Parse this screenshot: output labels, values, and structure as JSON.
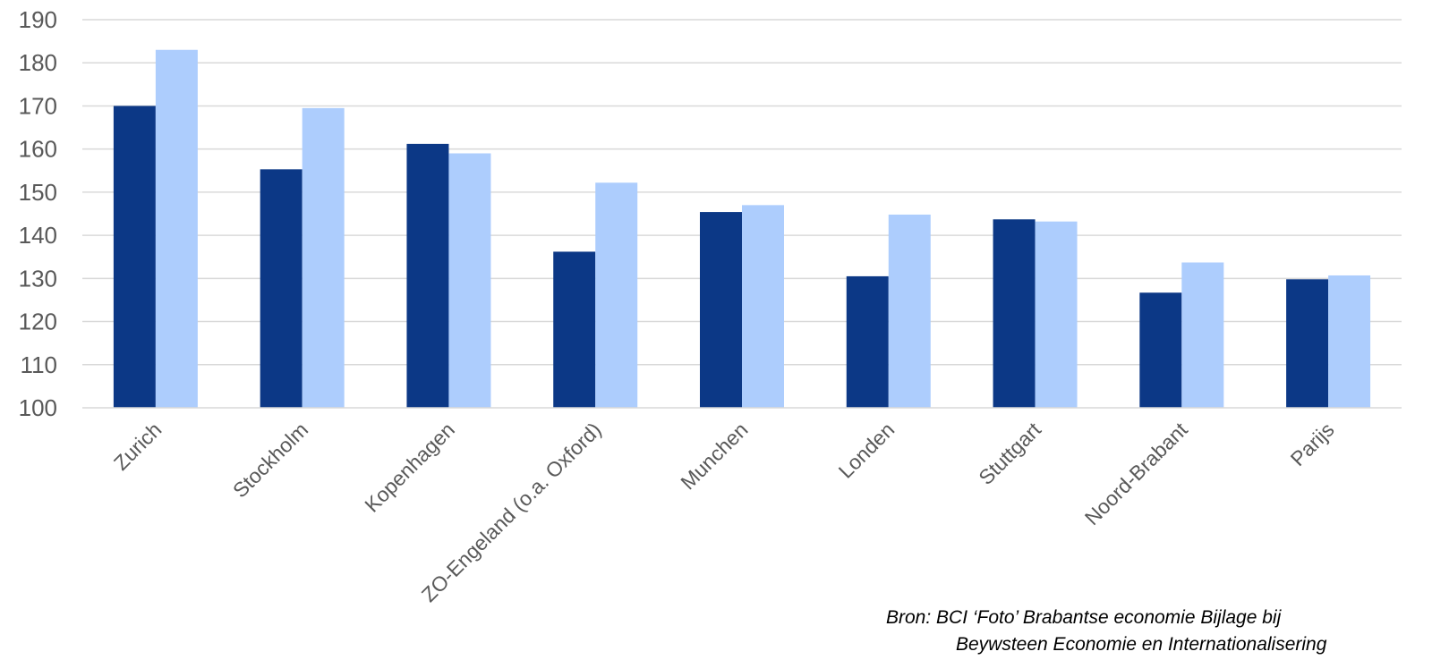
{
  "chart_data": {
    "type": "bar",
    "categories": [
      "Zurich",
      "Stockholm",
      "Kopenhagen",
      "ZO-Engeland (o.a. Oxford)",
      "Munchen",
      "Londen",
      "Stuttgart",
      "Noord-Brabant",
      "Parijs"
    ],
    "series": [
      {
        "color": "#0c3886",
        "values": [
          170,
          155.3,
          161.2,
          136.2,
          145.4,
          130.5,
          143.7,
          126.7,
          129.8
        ]
      },
      {
        "color": "#adcdfd",
        "values": [
          183,
          169.5,
          159,
          152.2,
          147,
          144.8,
          143.2,
          133.7,
          130.7
        ]
      }
    ],
    "ylim": [
      100,
      190
    ],
    "yticks": [
      "100",
      "110",
      "120",
      "130",
      "140",
      "150",
      "160",
      "170",
      "180",
      "190"
    ],
    "grid": true,
    "title": "",
    "xlabel": "",
    "ylabel": ""
  },
  "source": {
    "line1": "Bron: BCI ‘Foto’ Brabantse economie Bijlage bij",
    "line2": "Beywsteen Economie en Internationalisering"
  }
}
